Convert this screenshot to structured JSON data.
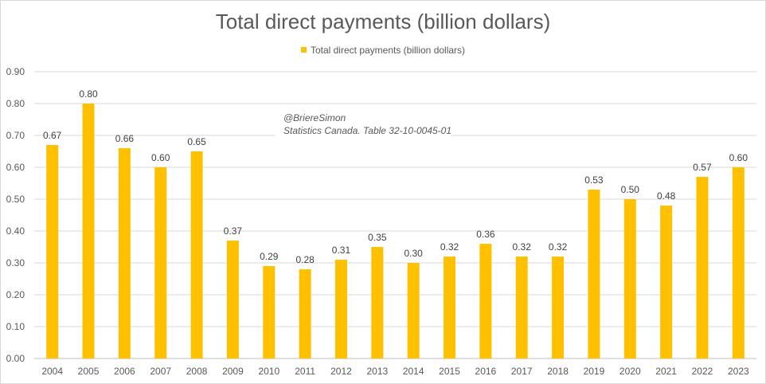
{
  "chart_data": {
    "type": "bar",
    "title": "Total direct payments (billion dollars)",
    "series": [
      {
        "name": "Total direct payments (billion dollars)",
        "values": [
          0.67,
          0.8,
          0.66,
          0.6,
          0.65,
          0.37,
          0.29,
          0.28,
          0.31,
          0.35,
          0.3,
          0.32,
          0.36,
          0.32,
          0.32,
          0.53,
          0.5,
          0.48,
          0.57,
          0.6
        ]
      }
    ],
    "categories": [
      "2004",
      "2005",
      "2006",
      "2007",
      "2008",
      "2009",
      "2010",
      "2011",
      "2012",
      "2013",
      "2014",
      "2015",
      "2016",
      "2017",
      "2018",
      "2019",
      "2020",
      "2021",
      "2022",
      "2023"
    ],
    "data_labels": [
      "0.67",
      "0.80",
      "0.66",
      "0.60",
      "0.65",
      "0.37",
      "0.29",
      "0.28",
      "0.31",
      "0.35",
      "0.30",
      "0.32",
      "0.36",
      "0.32",
      "0.32",
      "0.53",
      "0.50",
      "0.48",
      "0.57",
      "0.60"
    ],
    "ylim": [
      0,
      0.9
    ],
    "yticks": [
      "0.00",
      "0.10",
      "0.20",
      "0.30",
      "0.40",
      "0.50",
      "0.60",
      "0.70",
      "0.80",
      "0.90"
    ],
    "xlabel": "",
    "ylabel": "",
    "grid": true,
    "legend_position": "top-center",
    "bar_color": "#FFC000",
    "annotation": [
      "@BriereSimon",
      "Statistics Canada. Table 32-10-0045-01"
    ]
  }
}
